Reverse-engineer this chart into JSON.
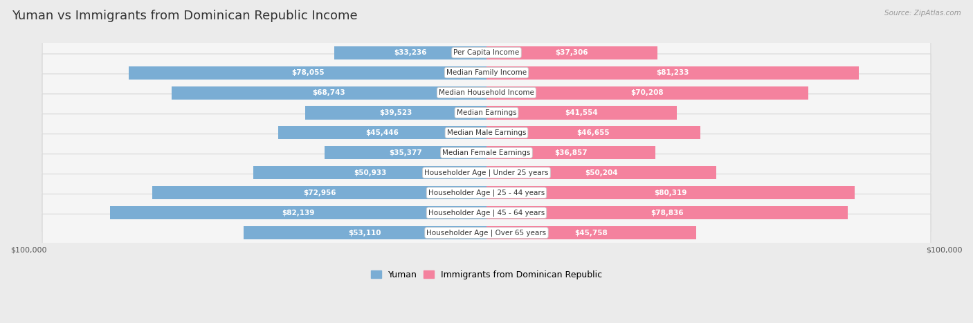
{
  "title": "Yuman vs Immigrants from Dominican Republic Income",
  "source": "Source: ZipAtlas.com",
  "categories": [
    "Per Capita Income",
    "Median Family Income",
    "Median Household Income",
    "Median Earnings",
    "Median Male Earnings",
    "Median Female Earnings",
    "Householder Age | Under 25 years",
    "Householder Age | 25 - 44 years",
    "Householder Age | 45 - 64 years",
    "Householder Age | Over 65 years"
  ],
  "yuman_values": [
    33236,
    78055,
    68743,
    39523,
    45446,
    35377,
    50933,
    72956,
    82139,
    53110
  ],
  "immigrant_values": [
    37306,
    81233,
    70208,
    41554,
    46655,
    36857,
    50204,
    80319,
    78836,
    45758
  ],
  "yuman_color": "#7aadd4",
  "immigrant_color": "#f4829e",
  "max_value": 100000,
  "background_color": "#ebebeb",
  "row_bg_color": "#f5f5f5",
  "row_bg_edge": "#d8d8d8",
  "label_bg_color": "#ffffff",
  "label_edge_color": "#cccccc",
  "title_fontsize": 13,
  "axis_fontsize": 8,
  "value_fontsize": 7.5,
  "cat_fontsize": 7.5,
  "tick_label": "$100,000",
  "legend_yuman": "Yuman",
  "legend_immigrant": "Immigrants from Dominican Republic",
  "inside_threshold": 20000,
  "inside_text_color": "#ffffff",
  "outside_text_color": "#555555"
}
